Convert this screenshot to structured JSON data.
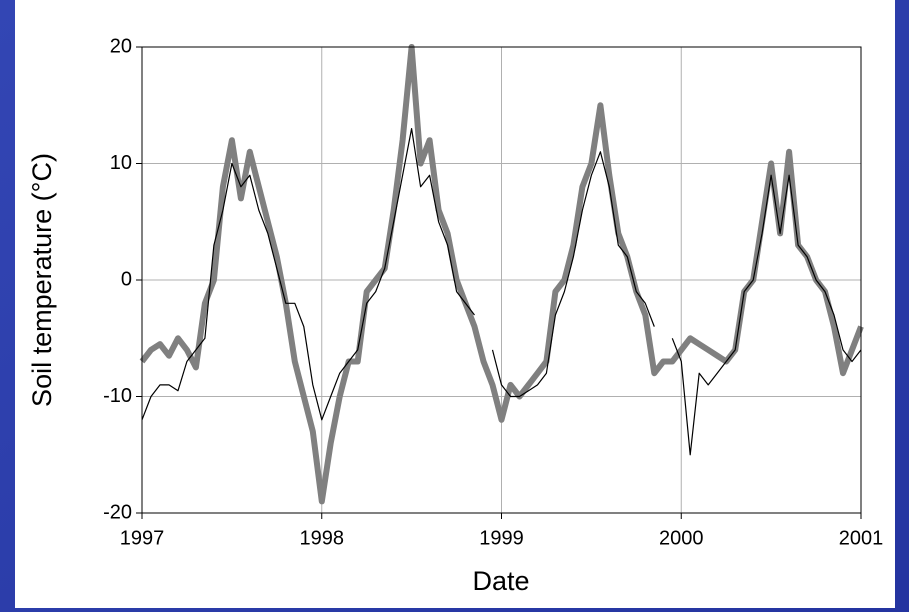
{
  "chart_data": {
    "type": "line",
    "x_label": "Date",
    "y_label": "Soil temperature (°C)",
    "x": [
      1997.0,
      1997.05,
      1997.1,
      1997.15,
      1997.2,
      1997.25,
      1997.3,
      1997.35,
      1997.4,
      1997.45,
      1997.5,
      1997.55,
      1997.6,
      1997.65,
      1997.7,
      1997.75,
      1997.8,
      1997.85,
      1997.9,
      1997.95,
      1998.0,
      1998.05,
      1998.1,
      1998.15,
      1998.2,
      1998.25,
      1998.3,
      1998.35,
      1998.4,
      1998.45,
      1998.5,
      1998.55,
      1998.6,
      1998.65,
      1998.7,
      1998.75,
      1998.8,
      1998.85,
      1998.9,
      1998.95,
      1999.0,
      1999.05,
      1999.1,
      1999.15,
      1999.2,
      1999.25,
      1999.3,
      1999.35,
      1999.4,
      1999.45,
      1999.5,
      1999.55,
      1999.6,
      1999.65,
      1999.7,
      1999.75,
      1999.8,
      1999.85,
      1999.9,
      1999.95,
      2000.0,
      2000.05,
      2000.1,
      2000.15,
      2000.2,
      2000.25,
      2000.3,
      2000.35,
      2000.4,
      2000.45,
      2000.5,
      2000.55,
      2000.6,
      2000.65,
      2000.7,
      2000.75,
      2000.8,
      2000.85,
      2000.9,
      2000.95,
      2001.0
    ],
    "series": [
      {
        "color": "#808080",
        "width": 6,
        "values": [
          -7,
          -6,
          -5.5,
          -6.5,
          -5,
          -6,
          -7.5,
          -2,
          0,
          8,
          12,
          7,
          11,
          8,
          5,
          2,
          -2,
          -7,
          -10,
          -13,
          -19,
          -14,
          -10,
          -7,
          -7,
          -1,
          0,
          1,
          6,
          12,
          20,
          10,
          12,
          6,
          4,
          0,
          -2,
          -4,
          -7,
          -9,
          -12,
          -9,
          -10,
          -9,
          -8,
          -7,
          -1,
          0,
          3,
          8,
          10,
          15,
          9,
          4,
          2,
          -1,
          -3,
          -8,
          -7,
          -7,
          -6,
          -5,
          -5.5,
          -6,
          -6.5,
          -7,
          -6,
          -1,
          0,
          5,
          10,
          4,
          11,
          3,
          2,
          0,
          -1,
          -4,
          -8,
          -6,
          -4
        ]
      },
      {
        "color": "#000000",
        "width": 1.2,
        "values": [
          -12,
          -10,
          -9,
          -9,
          -9.5,
          -7,
          -6,
          -5,
          3,
          6,
          10,
          8,
          9,
          6,
          4,
          1,
          -2,
          -2,
          -4,
          -9,
          -12,
          -10,
          -8,
          -7,
          -6,
          -2,
          -1,
          1,
          5,
          9,
          13,
          8,
          9,
          5,
          3,
          -1,
          -2,
          -3,
          null,
          -6,
          -9,
          -10,
          -10,
          -9.5,
          -9,
          -8,
          -3,
          -1,
          2,
          6,
          9,
          11,
          8,
          3,
          2,
          -1,
          -2,
          -4,
          null,
          -5,
          -7,
          -15,
          -8,
          -9,
          -8,
          -7,
          -6,
          -1,
          0,
          4,
          9,
          4,
          9,
          3,
          2,
          0,
          -1,
          -3,
          -6,
          -7,
          -6
        ]
      }
    ],
    "xlim": [
      1997,
      2001
    ],
    "ylim": [
      -20,
      20
    ],
    "xticks": [
      1997,
      1998,
      1999,
      2000,
      2001
    ],
    "yticks": [
      -20,
      -10,
      0,
      10,
      20
    ],
    "grid": true
  }
}
